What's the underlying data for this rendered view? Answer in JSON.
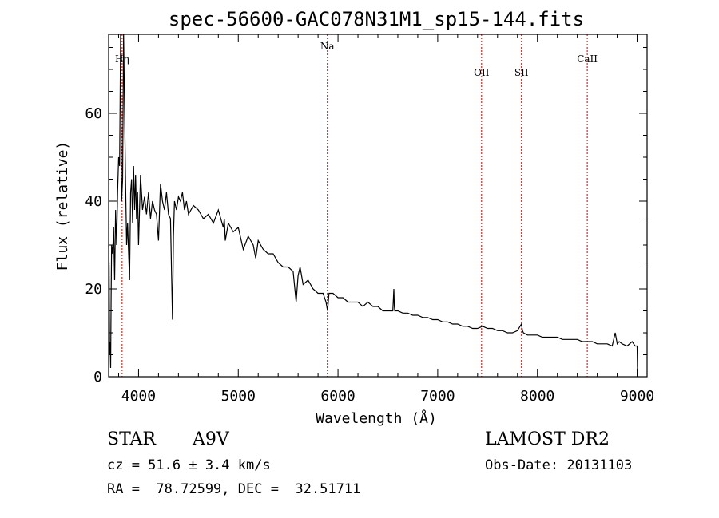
{
  "chart_data": {
    "type": "line",
    "title": "spec-56600-GAC078N31M1_sp15-144.fits",
    "xlabel": "Wavelength (Å)",
    "ylabel": "Flux (relative)",
    "xlim": [
      3700,
      9100
    ],
    "ylim": [
      0,
      78
    ],
    "xticks": [
      4000,
      5000,
      6000,
      7000,
      8000,
      9000
    ],
    "yticks": [
      0,
      20,
      40,
      60
    ],
    "line_color": "#000000",
    "marker_color": "#cc0000",
    "spectral_lines": [
      {
        "label": "Hη",
        "x": 3835
      },
      {
        "label": "Na",
        "x": 5893
      },
      {
        "label": "OII",
        "x": 7440
      },
      {
        "label": "SII",
        "x": 7840
      },
      {
        "label": "CaII",
        "x": 8500
      }
    ],
    "series": [
      {
        "x": [
          3700,
          3705,
          3710,
          3715,
          3720,
          3725,
          3730,
          3740,
          3750,
          3760,
          3770,
          3780,
          3790,
          3800,
          3810,
          3820,
          3830,
          3840,
          3850,
          3860,
          3870,
          3880,
          3890,
          3900,
          3910,
          3920,
          3930,
          3940,
          3950,
          3960,
          3970,
          3980,
          3990,
          4000,
          4020,
          4040,
          4060,
          4080,
          4100,
          4120,
          4140,
          4160,
          4180,
          4200,
          4220,
          4240,
          4260,
          4280,
          4300,
          4320,
          4340,
          4350,
          4360,
          4380,
          4400,
          4420,
          4440,
          4460,
          4480,
          4500,
          4550,
          4600,
          4650,
          4700,
          4750,
          4800,
          4850,
          4860,
          4870,
          4900,
          4950,
          5000,
          5050,
          5100,
          5150,
          5175,
          5200,
          5250,
          5300,
          5350,
          5400,
          5450,
          5500,
          5550,
          5580,
          5600,
          5620,
          5650,
          5700,
          5750,
          5800,
          5850,
          5880,
          5895,
          5910,
          5950,
          6000,
          6050,
          6100,
          6150,
          6200,
          6250,
          6300,
          6350,
          6400,
          6450,
          6500,
          6550,
          6560,
          6565,
          6570,
          6600,
          6650,
          6700,
          6750,
          6800,
          6850,
          6900,
          6950,
          7000,
          7050,
          7100,
          7150,
          7200,
          7250,
          7300,
          7350,
          7400,
          7450,
          7500,
          7550,
          7600,
          7650,
          7700,
          7750,
          7800,
          7840,
          7850,
          7860,
          7900,
          7950,
          8000,
          8050,
          8100,
          8150,
          8200,
          8250,
          8300,
          8350,
          8400,
          8450,
          8500,
          8550,
          8600,
          8650,
          8700,
          8750,
          8780,
          8800,
          8820,
          8850,
          8900,
          8950,
          8980,
          9000,
          9005
        ],
        "y": [
          30,
          25,
          5,
          8,
          2,
          18,
          30,
          28,
          34,
          22,
          38,
          30,
          42,
          50,
          48,
          78,
          40,
          45,
          85,
          60,
          44,
          30,
          35,
          28,
          22,
          42,
          45,
          35,
          48,
          38,
          46,
          36,
          42,
          30,
          46,
          38,
          41,
          37,
          42,
          36,
          40,
          38,
          37,
          31,
          44,
          40,
          38,
          42,
          37,
          36,
          13,
          32,
          40,
          38,
          41,
          40,
          42,
          38,
          40,
          37,
          39,
          38,
          36,
          37,
          35,
          38,
          34,
          36,
          31,
          35,
          33,
          34,
          29,
          32,
          30,
          27,
          31,
          29,
          28,
          28,
          26,
          25,
          25,
          24,
          17,
          23,
          25,
          21,
          22,
          20,
          19,
          19,
          17,
          15,
          19,
          19,
          18,
          18,
          17,
          17,
          17,
          16,
          17,
          16,
          16,
          15,
          15,
          15,
          20,
          16,
          15,
          15,
          14.5,
          14.5,
          14,
          14,
          13.5,
          13.5,
          13,
          13,
          12.5,
          12.5,
          12,
          12,
          11.5,
          11.5,
          11,
          11,
          11.5,
          11,
          11,
          10.5,
          10.5,
          10,
          10,
          10.5,
          12,
          10.5,
          10,
          9.5,
          9.5,
          9.5,
          9,
          9,
          9,
          9,
          8.5,
          8.5,
          8.5,
          8.5,
          8,
          8,
          8,
          7.5,
          7.5,
          7.5,
          7,
          10,
          7.5,
          8,
          7.5,
          7,
          8,
          7,
          7,
          0
        ]
      }
    ]
  },
  "footer": {
    "obj_class": "STAR",
    "subclass": "A9V",
    "cz": "cz = 51.6 ± 3.4 km/s",
    "coords": "RA =  78.72599, DEC =  32.51711",
    "survey": "LAMOST DR2",
    "obs_date": "Obs-Date: 20131103"
  }
}
